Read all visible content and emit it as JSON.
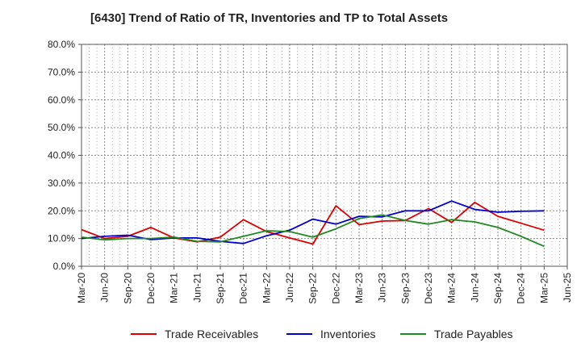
{
  "chart_data": {
    "type": "line",
    "title": "[6430]  Trend of Ratio of TR, Inventories and TP to Total Assets",
    "xlabel": "",
    "ylabel": "",
    "ylim": [
      0,
      80
    ],
    "y_ticks": [
      "0.0%",
      "10.0%",
      "20.0%",
      "30.0%",
      "40.0%",
      "50.0%",
      "60.0%",
      "70.0%",
      "80.0%"
    ],
    "x_ticks": [
      "Mar-20",
      "Jun-20",
      "Sep-20",
      "Dec-20",
      "Mar-21",
      "Jun-21",
      "Sep-21",
      "Dec-21",
      "Mar-22",
      "Jun-22",
      "Sep-22",
      "Dec-22",
      "Mar-23",
      "Jun-23",
      "Sep-23",
      "Dec-23",
      "Mar-24",
      "Jun-24",
      "Sep-24",
      "Dec-24",
      "Mar-25",
      "Jun-25"
    ],
    "categories": [
      "Mar-20",
      "Jun-20",
      "Sep-20",
      "Dec-20",
      "Mar-21",
      "Jun-21",
      "Sep-21",
      "Dec-21",
      "Mar-22",
      "Jun-22",
      "Sep-22",
      "Dec-22",
      "Mar-23",
      "Jun-23",
      "Sep-23",
      "Dec-23",
      "Mar-24",
      "Jun-24",
      "Sep-24",
      "Dec-24",
      "Mar-25"
    ],
    "grid": true,
    "legend_position": "bottom",
    "series": [
      {
        "name": "Trade Receivables",
        "color": "#dd0000",
        "values": [
          13.2,
          10.0,
          10.8,
          14.0,
          10.2,
          8.8,
          10.5,
          16.8,
          12.5,
          10.2,
          8.0,
          21.8,
          15.0,
          16.3,
          16.5,
          20.8,
          15.8,
          23.0,
          18.0,
          15.5,
          13.0
        ]
      },
      {
        "name": "Inventories",
        "color": "#0000cc",
        "values": [
          10.0,
          10.8,
          11.2,
          9.6,
          10.2,
          10.2,
          9.0,
          8.2,
          11.0,
          13.0,
          17.0,
          15.2,
          18.0,
          17.8,
          20.0,
          20.0,
          23.5,
          20.5,
          19.5,
          19.8,
          20.0
        ]
      },
      {
        "name": "Trade Payables",
        "color": "#228822",
        "values": [
          10.5,
          9.5,
          10.0,
          10.0,
          10.5,
          9.0,
          8.8,
          10.8,
          12.8,
          12.5,
          10.5,
          13.5,
          17.2,
          18.5,
          16.5,
          15.2,
          16.8,
          16.0,
          14.0,
          10.8,
          7.2
        ]
      }
    ]
  }
}
